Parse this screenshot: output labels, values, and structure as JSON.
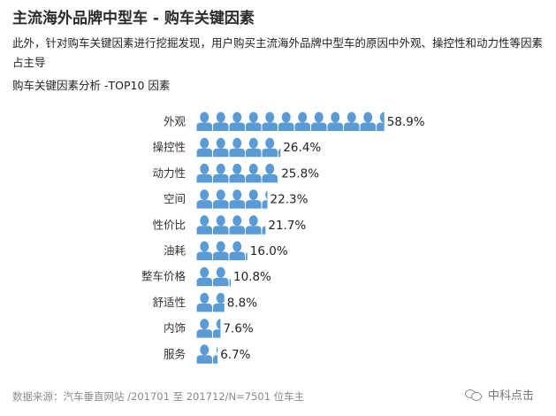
{
  "header": {
    "title": "主流海外品牌中型车 - 购车关键因素",
    "description": "此外，针对购车关键因素进行挖掘发现，用户购买主流海外品牌中型车的原因中外观、操控性和动力性等因素占主导",
    "subtitle": "购车关键因素分析 -TOP10 因素"
  },
  "footer": {
    "source": "数据来源：汽车垂直网站 /201701 至 201712/N=7501 位车主",
    "watermark": "中科点击",
    "watermark_icon": "wechat-icon"
  },
  "colors": {
    "icon": "#5b9bd5",
    "text": "#333333"
  },
  "chart_data": {
    "type": "bar",
    "orientation": "horizontal",
    "mark": "person-icon pictograph",
    "title": "购车关键因素分析 -TOP10 因素",
    "categories": [
      "外观",
      "操控性",
      "动力性",
      "空间",
      "性价比",
      "油耗",
      "整车价格",
      "舒适性",
      "内饰",
      "服务"
    ],
    "values": [
      58.9,
      26.4,
      25.8,
      22.3,
      21.7,
      16.0,
      10.8,
      8.8,
      7.6,
      6.7
    ],
    "value_labels": [
      "58.9%",
      "26.4%",
      "25.8%",
      "22.3%",
      "21.7%",
      "16.0%",
      "10.8%",
      "8.8%",
      "7.6%",
      "6.7%"
    ],
    "unit": "%",
    "grid": false,
    "legend": "none"
  }
}
